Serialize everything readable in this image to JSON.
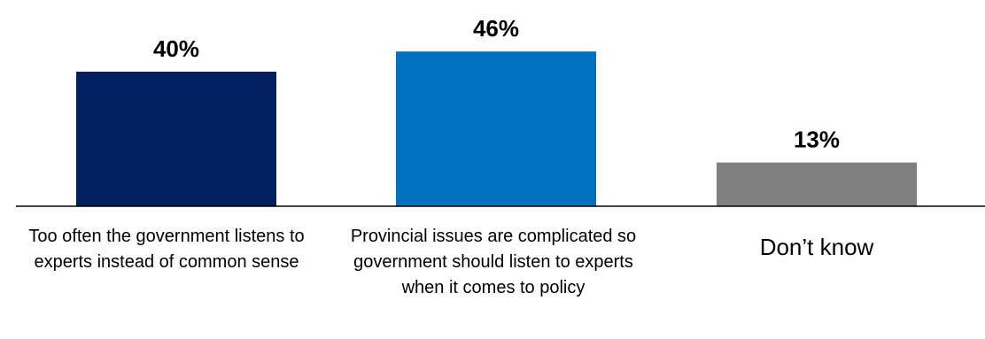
{
  "chart_data": {
    "type": "bar",
    "categories": [
      "Too often the government listens to experts instead of common sense",
      "Provincial issues are complicated so government should listen to experts when it comes to policy",
      "Don’t know"
    ],
    "values": [
      40,
      46,
      13
    ],
    "value_labels": [
      "40%",
      "46%",
      "13%"
    ],
    "colors": [
      "#02205F",
      "#0070C0",
      "#808080"
    ],
    "axis_color": "#000000",
    "grid": false,
    "legend": false
  }
}
